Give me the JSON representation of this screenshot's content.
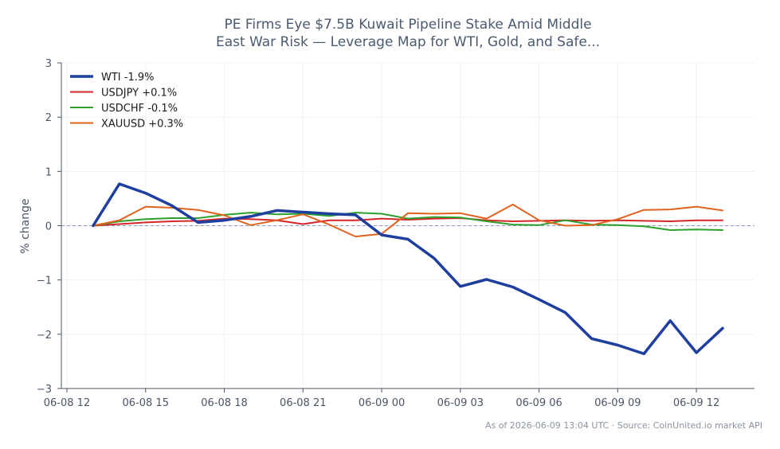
{
  "chart_data": {
    "type": "line",
    "title_line1": "PE Firms Eye $7.5B Kuwait Pipeline Stake Amid Middle",
    "title_line2": "East War Risk — Leverage Map for WTI, Gold, and Safe...",
    "ylabel": "% change",
    "xlabel": "",
    "ylim": [
      -3,
      3
    ],
    "yticks": [
      -3,
      -2,
      -1,
      0,
      1,
      2,
      3
    ],
    "ytick_labels": [
      "−3",
      "−2",
      "−1",
      "0",
      "1",
      "2",
      "3"
    ],
    "xlim": [
      0,
      26
    ],
    "xticks": [
      0,
      3,
      6,
      9,
      12,
      15,
      18,
      21,
      24
    ],
    "xtick_labels": [
      "06-08 12",
      "06-08 15",
      "06-08 18",
      "06-08 21",
      "06-09 00",
      "06-09 03",
      "06-09 06",
      "06-09 09",
      "06-09 12"
    ],
    "grid": true,
    "zero_line": true,
    "legend_position": "top-left",
    "x": [
      1,
      2,
      3,
      4,
      5,
      6,
      7,
      8,
      9,
      10,
      11,
      12,
      13,
      14,
      15,
      16,
      17,
      18,
      19,
      20,
      21,
      22,
      23,
      24,
      25
    ],
    "series": [
      {
        "name": "WTI -1.9%",
        "color": "#1f3f9e",
        "width": 3.5,
        "values": [
          0.0,
          0.77,
          0.6,
          0.37,
          0.06,
          0.1,
          0.17,
          0.28,
          0.25,
          0.22,
          0.2,
          -0.17,
          -0.25,
          -0.6,
          -1.12,
          -0.99,
          -1.13,
          -1.36,
          -1.6,
          -2.08,
          -2.2,
          -2.36,
          -1.75,
          -2.34,
          -1.89
        ]
      },
      {
        "name": "USDJPY +0.1%",
        "color": "#d62728",
        "width": 2,
        "values": [
          0.0,
          0.03,
          0.06,
          0.08,
          0.09,
          0.13,
          0.12,
          0.1,
          0.03,
          0.1,
          0.1,
          0.13,
          0.11,
          0.13,
          0.14,
          0.1,
          0.08,
          0.09,
          0.1,
          0.09,
          0.1,
          0.09,
          0.08,
          0.1,
          0.1
        ]
      },
      {
        "name": "USDCHF -0.1%",
        "color": "#2ca02c",
        "width": 2,
        "values": [
          0.0,
          0.08,
          0.12,
          0.14,
          0.14,
          0.2,
          0.24,
          0.21,
          0.22,
          0.18,
          0.24,
          0.22,
          0.13,
          0.16,
          0.15,
          0.08,
          0.02,
          0.01,
          0.1,
          0.02,
          0.01,
          -0.01,
          -0.08,
          -0.07,
          -0.08
        ]
      },
      {
        "name": "XAUUSD +0.3%",
        "color": "#e0621c",
        "width": 2,
        "values": [
          0.0,
          0.1,
          0.35,
          0.33,
          0.29,
          0.19,
          0.01,
          0.1,
          0.21,
          0.02,
          -0.2,
          -0.15,
          0.23,
          0.22,
          0.23,
          0.13,
          0.39,
          0.1,
          0.0,
          0.01,
          0.12,
          0.29,
          0.3,
          0.35,
          0.28
        ]
      }
    ]
  },
  "footer": {
    "note": "As of 2026-06-09 13:04 UTC · Source: CoinUnited.io market API"
  }
}
